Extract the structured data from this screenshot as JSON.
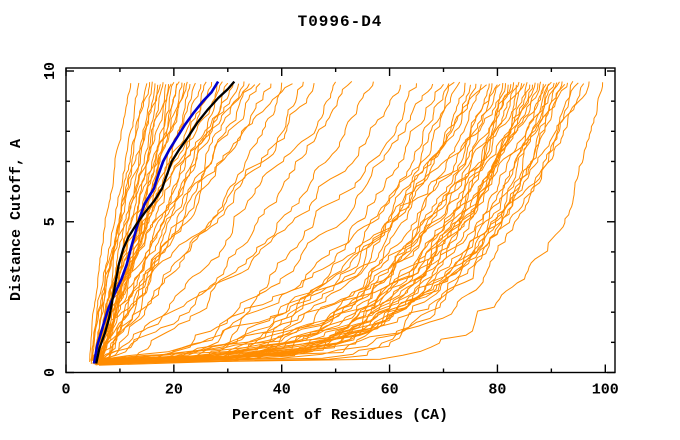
{
  "header": {
    "title": "T0996-D4"
  },
  "chart_data": {
    "type": "line",
    "title": "T0996-D4",
    "xlabel": "Percent of Residues (CA)",
    "ylabel": "Distance Cutoff, A",
    "xlim": [
      0,
      101.8
    ],
    "ylim": [
      0,
      10.1
    ],
    "x_major_ticks": [
      0,
      20,
      40,
      60,
      80,
      100
    ],
    "x_minor_ticks": [
      10,
      30,
      50,
      70,
      90
    ],
    "y_major_ticks": [
      0,
      5,
      10
    ],
    "y_minor_ticks": [
      1,
      2,
      3,
      4,
      6,
      7,
      8,
      9
    ],
    "grid": false,
    "frame": true,
    "legend": "none",
    "colors": {
      "background": "#ffffff",
      "axis": "#000000",
      "text": "#000000",
      "models": "#ff8c00",
      "highlight_primary": "#0000cd",
      "highlight_secondary": "#000000"
    },
    "series": [
      {
        "name": "highlighted-model-blue",
        "color": "#0000cd",
        "width": 2.6,
        "points": [
          [
            5.2,
            0.3
          ],
          [
            5.8,
            0.9
          ],
          [
            6.8,
            1.5
          ],
          [
            7.8,
            2.1
          ],
          [
            9.0,
            2.6
          ],
          [
            10.3,
            3.1
          ],
          [
            11.3,
            3.6
          ],
          [
            12.0,
            4.1
          ],
          [
            12.8,
            4.6
          ],
          [
            13.6,
            5.1
          ],
          [
            14.6,
            5.6
          ],
          [
            16.3,
            6.1
          ],
          [
            17.2,
            6.6
          ],
          [
            18.0,
            7.0
          ],
          [
            19.2,
            7.4
          ],
          [
            20.6,
            7.8
          ],
          [
            22.0,
            8.2
          ],
          [
            23.6,
            8.6
          ],
          [
            25.4,
            9.0
          ],
          [
            27.0,
            9.3
          ],
          [
            28.2,
            9.65
          ]
        ]
      },
      {
        "name": "highlighted-model-black",
        "color": "#000000",
        "width": 2.3,
        "points": [
          [
            5.6,
            0.3
          ],
          [
            6.2,
            0.8
          ],
          [
            7.2,
            1.3
          ],
          [
            8.0,
            1.8
          ],
          [
            8.6,
            2.4
          ],
          [
            9.2,
            3.0
          ],
          [
            9.8,
            3.6
          ],
          [
            10.6,
            4.1
          ],
          [
            11.6,
            4.5
          ],
          [
            13.0,
            4.9
          ],
          [
            14.6,
            5.3
          ],
          [
            16.4,
            5.7
          ],
          [
            17.8,
            6.1
          ],
          [
            18.6,
            6.5
          ],
          [
            19.6,
            7.0
          ],
          [
            21.0,
            7.4
          ],
          [
            22.6,
            7.8
          ],
          [
            24.4,
            8.3
          ],
          [
            26.2,
            8.7
          ],
          [
            28.2,
            9.1
          ],
          [
            30.0,
            9.4
          ],
          [
            31.2,
            9.65
          ]
        ]
      }
    ],
    "model_curves": {
      "comment": "other server models (orange). Each curve=[x_percent_at_bottom, x_percent_at_top, shape_exponent, seed]; curve spans y_start..y_end with monotone bursty interpolation",
      "color": "#ff8c00",
      "width": 1,
      "y_start": 0.32,
      "y_end": 9.6,
      "curves": [
        [
          4.4,
          12,
          1.3,
          1
        ],
        [
          4.8,
          13.5,
          1.1,
          2
        ],
        [
          5.2,
          15,
          0.95,
          3
        ],
        [
          4.6,
          15.5,
          1.25,
          4
        ],
        [
          5.8,
          16,
          0.85,
          5
        ],
        [
          5.0,
          16.5,
          1.05,
          6
        ],
        [
          5.5,
          17,
          1.2,
          7
        ],
        [
          4.9,
          17.5,
          0.9,
          8
        ],
        [
          6.2,
          18,
          1.0,
          9
        ],
        [
          5.3,
          18.5,
          1.15,
          10
        ],
        [
          5.9,
          19,
          0.8,
          11
        ],
        [
          4.7,
          19.5,
          1.28,
          12
        ],
        [
          6.4,
          20,
          0.95,
          13
        ],
        [
          5.1,
          20.5,
          1.1,
          14
        ],
        [
          5.7,
          21,
          1.22,
          15
        ],
        [
          6.0,
          21.5,
          0.88,
          16
        ],
        [
          5.4,
          22,
          1.02,
          17
        ],
        [
          6.6,
          22.5,
          1.18,
          18
        ],
        [
          5.0,
          23,
          0.92,
          19
        ],
        [
          6.1,
          24,
          1.08,
          20
        ],
        [
          5.6,
          25,
          1.25,
          21
        ],
        [
          6.8,
          26,
          0.86,
          22
        ],
        [
          5.2,
          27,
          1.12,
          23
        ],
        [
          6.3,
          28,
          0.97,
          24
        ],
        [
          5.8,
          29,
          1.2,
          25
        ],
        [
          7.0,
          30,
          0.9,
          26
        ],
        [
          5.5,
          31,
          1.05,
          27
        ],
        [
          6.5,
          32,
          1.15,
          28
        ],
        [
          5.9,
          33,
          0.84,
          29
        ],
        [
          7.2,
          34,
          1.0,
          30
        ],
        [
          6.0,
          35,
          1.18,
          31
        ],
        [
          6.7,
          36,
          0.93,
          32
        ],
        [
          5.4,
          38,
          1.08,
          33
        ],
        [
          7.4,
          40,
          0.87,
          34
        ],
        [
          6.2,
          42,
          1.12,
          35
        ],
        [
          6.9,
          44,
          0.96,
          36
        ],
        [
          5.7,
          46,
          1.02,
          37
        ],
        [
          6.0,
          50,
          0.72,
          38
        ],
        [
          6.5,
          53,
          0.8,
          39
        ],
        [
          5.5,
          57,
          0.62,
          40
        ],
        [
          6.8,
          62,
          0.7,
          41
        ],
        [
          6.0,
          65,
          0.55,
          42
        ],
        [
          5.0,
          68,
          0.45,
          43
        ],
        [
          6.5,
          70,
          0.4,
          44
        ],
        [
          5.5,
          71,
          0.35,
          45
        ],
        [
          7.0,
          72,
          0.42,
          46
        ],
        [
          6.0,
          73,
          0.3,
          47
        ],
        [
          5.2,
          74,
          0.38,
          48
        ],
        [
          6.8,
          75,
          0.28,
          49
        ],
        [
          5.8,
          76,
          0.35,
          50
        ],
        [
          7.2,
          77,
          0.25,
          51
        ],
        [
          6.2,
          78,
          0.4,
          52
        ],
        [
          5.4,
          78.5,
          0.32,
          53
        ],
        [
          6.6,
          79,
          0.22,
          54
        ],
        [
          5.0,
          80,
          0.36,
          55
        ],
        [
          7.4,
          80.5,
          0.28,
          56
        ],
        [
          6.0,
          81,
          0.42,
          57
        ],
        [
          5.6,
          81.5,
          0.24,
          58
        ],
        [
          6.9,
          82,
          0.33,
          59
        ],
        [
          5.2,
          82.5,
          0.27,
          60
        ],
        [
          6.3,
          83,
          0.38,
          61
        ],
        [
          5.8,
          83.5,
          0.21,
          62
        ],
        [
          7.1,
          84,
          0.31,
          63
        ],
        [
          5.4,
          84.5,
          0.26,
          64
        ],
        [
          6.5,
          85,
          0.36,
          65
        ],
        [
          6.0,
          85.5,
          0.2,
          66
        ],
        [
          5.1,
          86,
          0.3,
          67
        ],
        [
          6.7,
          86.5,
          0.25,
          68
        ],
        [
          5.7,
          87,
          0.34,
          69
        ],
        [
          6.2,
          87.5,
          0.22,
          70
        ],
        [
          5.3,
          88,
          0.29,
          71
        ],
        [
          6.8,
          88.5,
          0.24,
          72
        ],
        [
          5.9,
          89,
          0.33,
          73
        ],
        [
          6.4,
          89.5,
          0.19,
          74
        ],
        [
          5.5,
          90,
          0.27,
          75
        ],
        [
          7.0,
          90.5,
          0.23,
          76
        ],
        [
          6.1,
          91,
          0.31,
          77
        ],
        [
          5.6,
          91.5,
          0.2,
          78
        ],
        [
          6.6,
          92,
          0.26,
          79
        ],
        [
          5.2,
          92.5,
          0.22,
          80
        ],
        [
          6.3,
          93,
          0.29,
          81
        ],
        [
          5.8,
          94,
          0.18,
          82
        ],
        [
          6.9,
          95,
          0.24,
          83
        ],
        [
          5.4,
          96,
          0.21,
          84
        ],
        [
          6.0,
          97,
          0.26,
          85
        ],
        [
          6.5,
          99.5,
          0.12,
          86
        ]
      ]
    }
  }
}
